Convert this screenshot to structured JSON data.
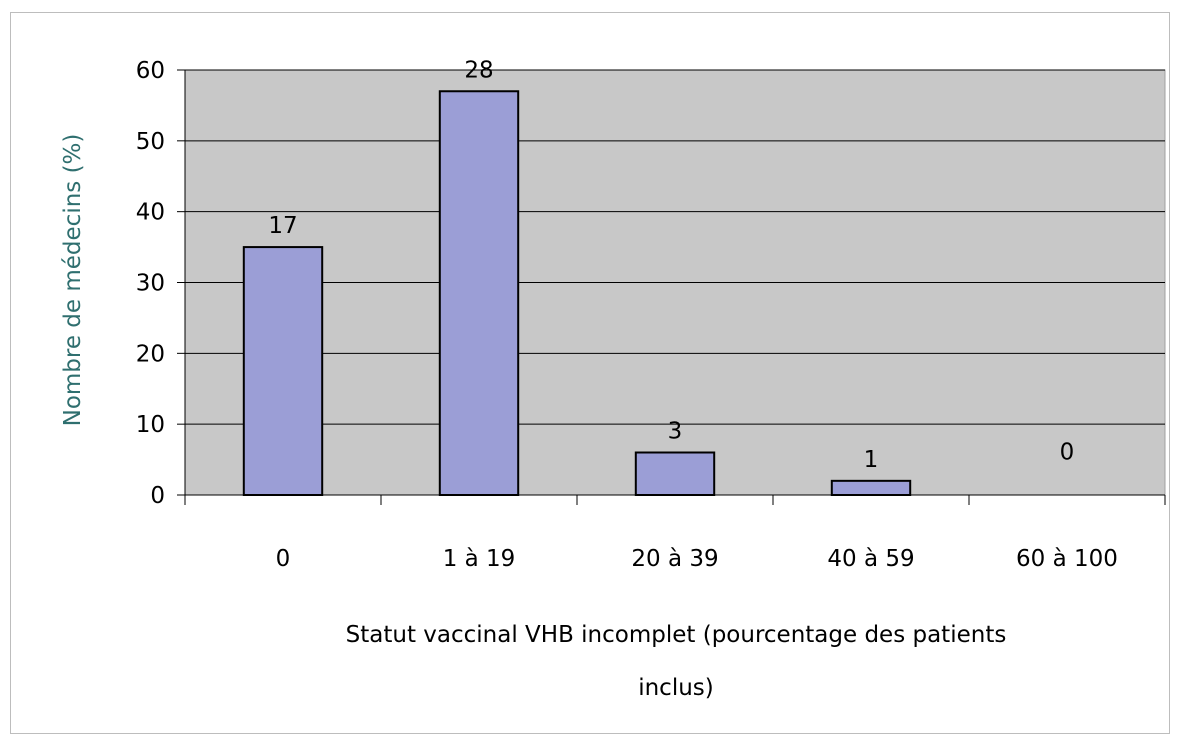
{
  "chart_data": {
    "type": "bar",
    "categories": [
      "0",
      "1 à 19",
      "20 à 39",
      "40 à 59",
      "60 à 100"
    ],
    "values": [
      35,
      57,
      6,
      2,
      0
    ],
    "data_labels": [
      "17",
      "28",
      "3",
      "1",
      "0"
    ],
    "ylabel": "Nombre de médecins (%)",
    "xlabel_line1": "Statut vaccinal VHB incomplet (pourcentage des patients",
    "xlabel_line2": "inclus)",
    "ylim": [
      0,
      60
    ],
    "yticks": [
      0,
      10,
      20,
      30,
      40,
      50,
      60
    ],
    "grid": true,
    "legend": "none",
    "colors": {
      "bar_fill": "#9b9ed6",
      "bar_stroke": "#000000",
      "plot_background": "#c8c8c8",
      "gridline": "#000000",
      "ylabel": "#2f6f6f"
    }
  }
}
